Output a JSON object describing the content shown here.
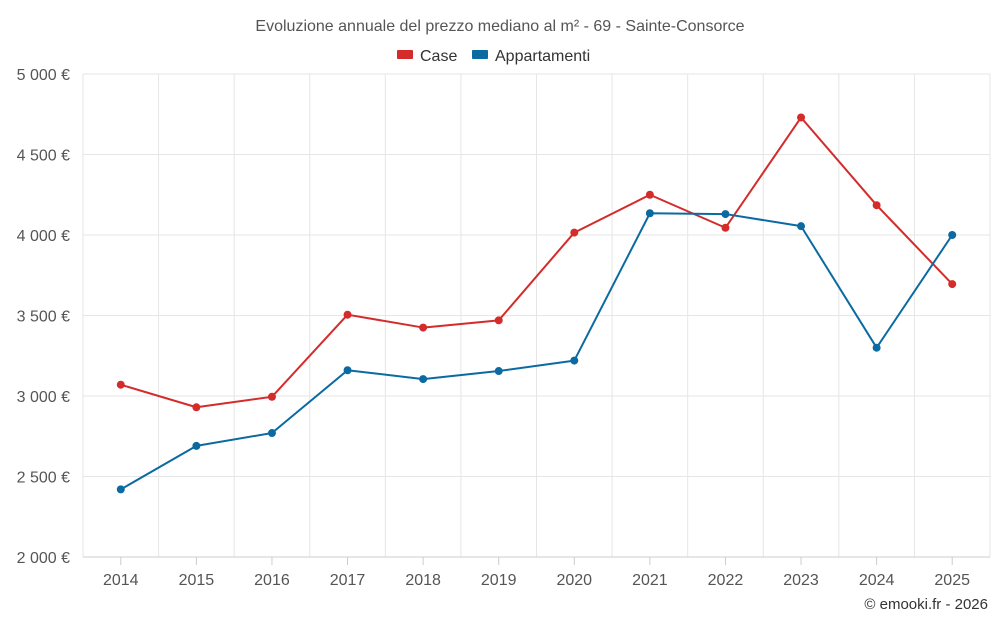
{
  "chart_data": {
    "type": "line",
    "title": "Evoluzione annuale del prezzo mediano al m² - 69 - Sainte-Consorce",
    "categories": [
      "2014",
      "2015",
      "2016",
      "2017",
      "2018",
      "2019",
      "2020",
      "2021",
      "2022",
      "2023",
      "2024",
      "2025"
    ],
    "series": [
      {
        "name": "Case",
        "color": "#d42b2b",
        "values": [
          3070,
          2930,
          2995,
          3505,
          3425,
          3470,
          4015,
          4250,
          4045,
          4730,
          4185,
          3695
        ]
      },
      {
        "name": "Appartamenti",
        "color": "#0b6aa2",
        "values": [
          2420,
          2690,
          2770,
          3160,
          3105,
          3155,
          3220,
          4135,
          4130,
          4055,
          3300,
          4000
        ]
      }
    ],
    "ylim": [
      2000,
      5000
    ],
    "yticks": [
      2000,
      2500,
      3000,
      3500,
      4000,
      4500,
      5000
    ],
    "ytick_labels": [
      "2 000 €",
      "2 500 €",
      "3 000 €",
      "3 500 €",
      "4 000 €",
      "4 500 €",
      "5 000 €"
    ],
    "xlabel": "",
    "ylabel": "",
    "grid": true,
    "legend_position": "top-center"
  },
  "credit": "© emooki.fr - 2026"
}
